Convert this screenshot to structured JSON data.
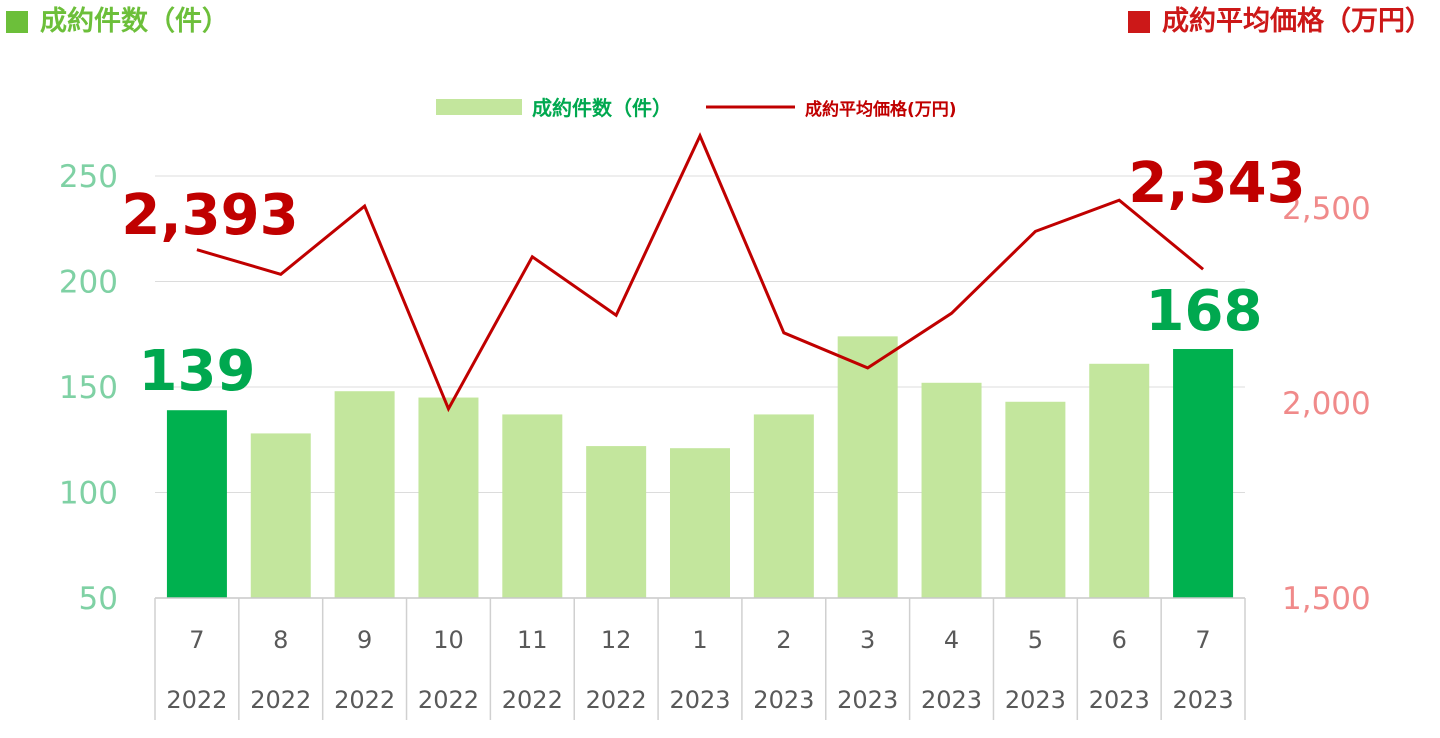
{
  "header": {
    "left_title": "成約件数（件）",
    "right_title": "成約平均価格（万円）"
  },
  "colors": {
    "bar_light": "#c3e69d",
    "bar_highlight": "#00b14f",
    "line": "#c00000",
    "left_axis_text": "#7fd1a4",
    "right_axis_text": "#f08a8a",
    "highlight_count_text": "#00a84f",
    "highlight_price_text": "#c00000",
    "header_green": "#6cbf3a",
    "header_red": "#cc1818"
  },
  "chart_data": {
    "type": "bar+line",
    "categories": [
      {
        "month": "7",
        "year": "2022"
      },
      {
        "month": "8",
        "year": "2022"
      },
      {
        "month": "9",
        "year": "2022"
      },
      {
        "month": "10",
        "year": "2022"
      },
      {
        "month": "11",
        "year": "2022"
      },
      {
        "month": "12",
        "year": "2022"
      },
      {
        "month": "1",
        "year": "2023"
      },
      {
        "month": "2",
        "year": "2023"
      },
      {
        "month": "3",
        "year": "2023"
      },
      {
        "month": "4",
        "year": "2023"
      },
      {
        "month": "5",
        "year": "2023"
      },
      {
        "month": "6",
        "year": "2023"
      },
      {
        "month": "7",
        "year": "2023"
      }
    ],
    "series": [
      {
        "name": "成約件数（件）",
        "kind": "bar",
        "axis": "left",
        "values": [
          139,
          128,
          148,
          145,
          137,
          122,
          121,
          137,
          174,
          152,
          143,
          161,
          168
        ],
        "highlight_indices": [
          0,
          12
        ]
      },
      {
        "name": "成約平均価格(万円)",
        "kind": "line",
        "axis": "right",
        "values": [
          2393,
          2330,
          2505,
          1985,
          2375,
          2225,
          2685,
          2180,
          2090,
          2230,
          2440,
          2520,
          2343
        ]
      }
    ],
    "left_axis": {
      "min": 50,
      "max": 250,
      "ticks": [
        "50",
        "100",
        "150",
        "200",
        "250"
      ]
    },
    "right_axis": {
      "min": 1500,
      "max": 2500,
      "ticks": [
        "1,500",
        "2,000",
        "2,500"
      ]
    },
    "callouts": {
      "first_count": "139",
      "last_count": "168",
      "first_price": "2,393",
      "last_price": "2,343"
    },
    "legend": {
      "position": "top-center"
    },
    "grid": true
  }
}
